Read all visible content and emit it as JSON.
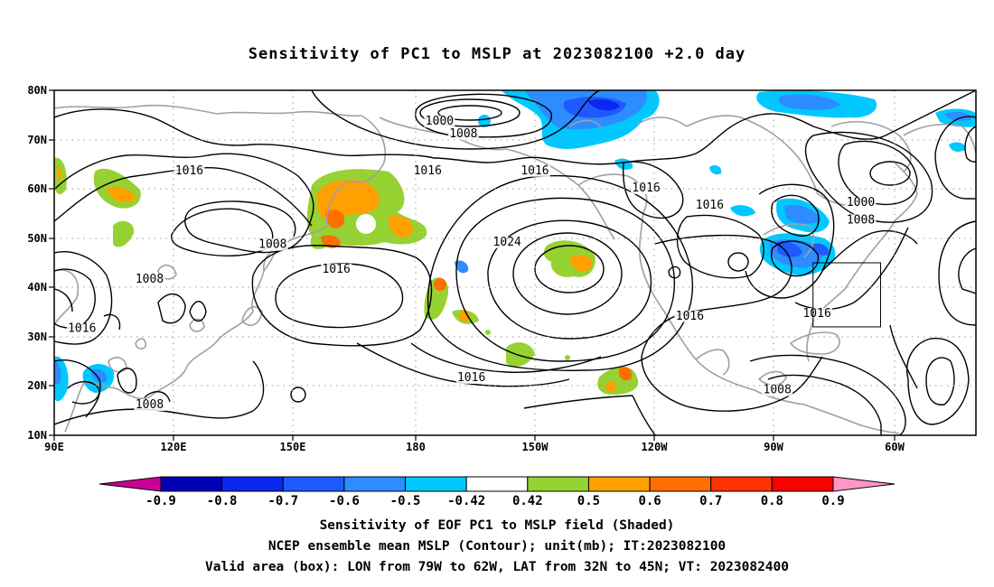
{
  "title": "Sensitivity of PC1 to MSLP at 2023082100 +2.0 day",
  "footer": {
    "line1": "Sensitivity of EOF PC1 to MSLP field (Shaded)",
    "line2": "NCEP ensemble mean MSLP (Contour); unit(mb); IT:2023082100",
    "line3": "Valid area (box): LON from 79W to 62W, LAT from 32N to 45N; VT: 2023082400"
  },
  "map": {
    "lat_ticks": [
      "80N",
      "70N",
      "60N",
      "50N",
      "40N",
      "30N",
      "20N",
      "10N"
    ],
    "lon_ticks": [
      "90E",
      "120E",
      "150E",
      "180",
      "150W",
      "120W",
      "90W",
      "60W"
    ],
    "lon_range": [
      90,
      322
    ],
    "lat_range": [
      10,
      80
    ],
    "valid_box": {
      "lon": [
        281,
        298
      ],
      "lat": [
        32,
        45
      ]
    },
    "contour_labels": [
      {
        "text": "1000",
        "lon": 187,
        "lat": 73
      },
      {
        "text": "1008",
        "lon": 193,
        "lat": 70.5
      },
      {
        "text": "1016",
        "lon": 124,
        "lat": 63
      },
      {
        "text": "1016",
        "lon": 184,
        "lat": 63
      },
      {
        "text": "1016",
        "lon": 211,
        "lat": 63
      },
      {
        "text": "1016",
        "lon": 239,
        "lat": 59.5
      },
      {
        "text": "1016",
        "lon": 255,
        "lat": 56
      },
      {
        "text": "1000",
        "lon": 293,
        "lat": 56.5
      },
      {
        "text": "1008",
        "lon": 293,
        "lat": 53
      },
      {
        "text": "1008",
        "lon": 145,
        "lat": 48
      },
      {
        "text": "1016",
        "lon": 161,
        "lat": 43
      },
      {
        "text": "1024",
        "lon": 204,
        "lat": 48.5
      },
      {
        "text": "1008",
        "lon": 114,
        "lat": 41
      },
      {
        "text": "1016",
        "lon": 97,
        "lat": 31
      },
      {
        "text": "1016",
        "lon": 250,
        "lat": 33.5
      },
      {
        "text": "1016",
        "lon": 282,
        "lat": 34
      },
      {
        "text": "1016",
        "lon": 195,
        "lat": 21
      },
      {
        "text": "1008",
        "lon": 272,
        "lat": 18.5
      },
      {
        "text": "1008",
        "lon": 114,
        "lat": 15.5
      }
    ]
  },
  "colorbar": {
    "labels": [
      "-0.9",
      "-0.8",
      "-0.7",
      "-0.6",
      "-0.5",
      "-0.42",
      "0.42",
      "0.5",
      "0.6",
      "0.7",
      "0.8",
      "0.9"
    ],
    "colors": [
      "#0000b4",
      "#0a28f0",
      "#1e5aff",
      "#2d8cff",
      "#00c8ff",
      "#ffffff",
      "#96d232",
      "#ffa000",
      "#ff6e00",
      "#ff3200",
      "#ff0000"
    ],
    "low_color": "#c80096",
    "high_color": "#ff96c8"
  }
}
